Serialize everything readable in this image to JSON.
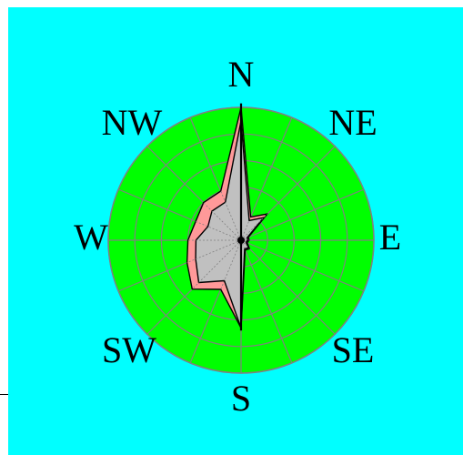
{
  "chart_data": {
    "type": "windrose",
    "directions": [
      "N",
      "NE",
      "E",
      "SE",
      "S",
      "SW",
      "W",
      "NW"
    ],
    "sectors": 16,
    "rings": 5,
    "series": [
      {
        "values": [
          1.0,
          0.19,
          0.28,
          0.06,
          0.06,
          0.05,
          0.09,
          0.08,
          0.66,
          0.4,
          0.52,
          0.44,
          0.4,
          0.37,
          0.4,
          0.4
        ]
      },
      {
        "values": [
          0.9,
          0.16,
          0.24,
          0.05,
          0.05,
          0.04,
          0.08,
          0.07,
          0.66,
          0.33,
          0.45,
          0.37,
          0.34,
          0.27,
          0.31,
          0.31
        ]
      }
    ],
    "colors": {
      "background": "#00ffff",
      "disc": "#00ff00",
      "grid": "#808080",
      "series_outer": "#ff9999",
      "series_inner": "#c0c0c0",
      "outline": "#000000"
    },
    "grid": true
  }
}
